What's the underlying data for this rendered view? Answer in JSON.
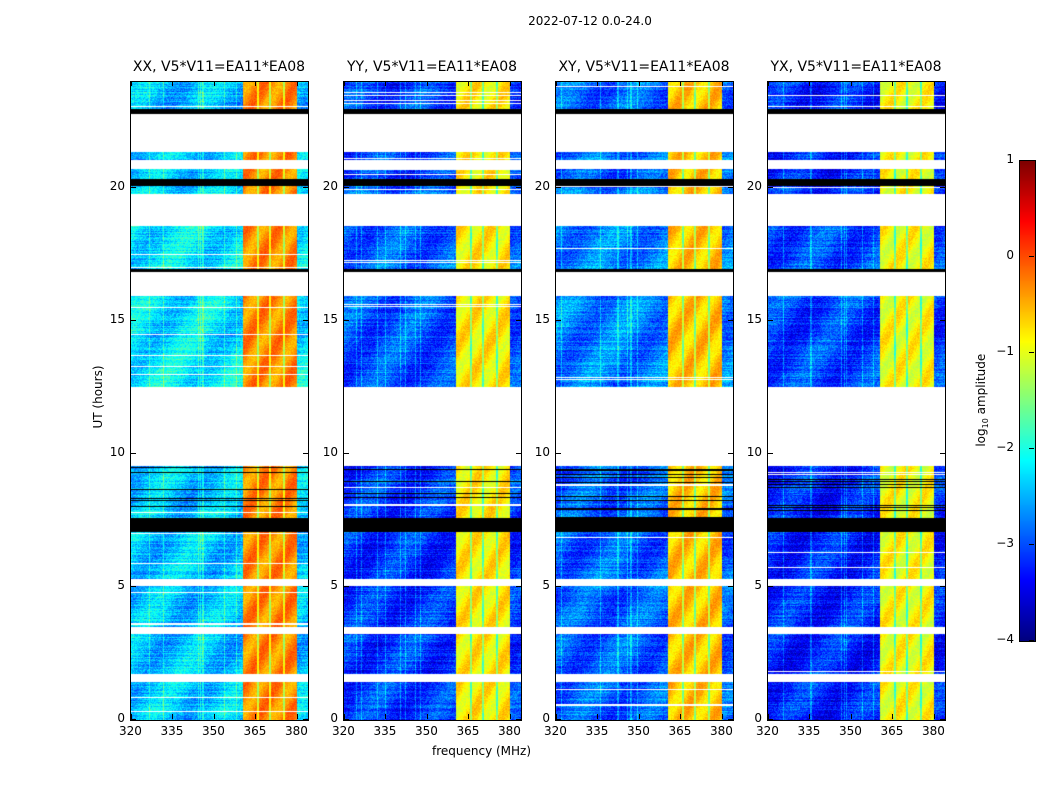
{
  "figure_title": "2022-07-12 0.0-24.0",
  "chart_data": {
    "type": "heatmap",
    "title": "2022-07-12 0.0-24.0",
    "xlabel": "frequency (MHz)",
    "ylabel": "UT (hours)",
    "xlim": [
      320,
      384
    ],
    "ylim": [
      0,
      24
    ],
    "xticks": [
      320,
      335,
      350,
      365,
      380
    ],
    "yticks": [
      0,
      5,
      10,
      15,
      20
    ],
    "colorbar": {
      "label_prefix": "log",
      "label_sub": "10",
      "label_suffix": " amplitude",
      "colormap": "jet",
      "range": [
        -4,
        1
      ],
      "ticks": [
        1,
        0,
        -1,
        -2,
        -3,
        -4
      ]
    },
    "flagged_gaps_hours": [
      [
        21.39,
        22.81
      ],
      [
        20.75,
        21.09
      ],
      [
        18.61,
        19.81
      ],
      [
        15.96,
        16.89
      ],
      [
        9.59,
        12.55
      ],
      [
        5.06,
        5.32
      ],
      [
        3.26,
        3.52
      ],
      [
        1.46,
        1.76
      ]
    ],
    "dark_rows_hours": [
      [
        22.81,
        23.0
      ],
      [
        20.1,
        20.37
      ],
      [
        16.89,
        17.0
      ],
      [
        7.1,
        7.6
      ]
    ],
    "bright_band_mhz": [
      360.4,
      380
    ],
    "subband_edges_mhz": [
      365.8,
      370,
      375
    ],
    "panels": [
      {
        "title": "XX, V5*V11=EA11*EA08",
        "base_log_amp": -2.4,
        "band_log_amp": -0.3
      },
      {
        "title": "YY, V5*V11=EA11*EA08",
        "base_log_amp": -3.1,
        "band_log_amp": -0.8
      },
      {
        "title": "XY, V5*V11=EA11*EA08",
        "base_log_amp": -2.9,
        "band_log_amp": -0.6
      },
      {
        "title": "YX, V5*V11=EA11*EA08",
        "base_log_amp": -3.2,
        "band_log_amp": -0.9
      }
    ]
  }
}
